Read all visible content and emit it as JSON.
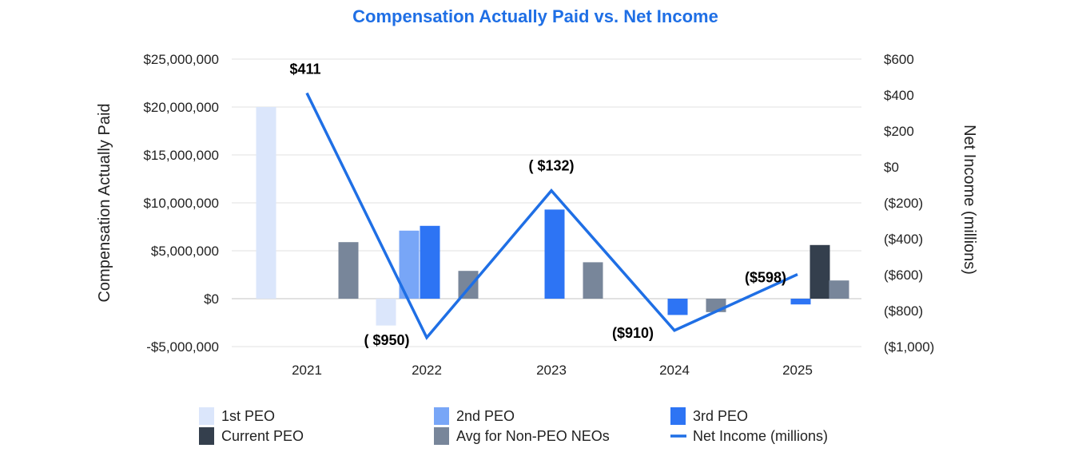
{
  "chart_data": {
    "type": "bar",
    "title": "Compensation Actually Paid vs. Net Income",
    "title_color": "#1f6fe5",
    "categories": [
      "2021",
      "2022",
      "2023",
      "2024",
      "2025"
    ],
    "ylabel": "Compensation Actually Paid",
    "y2label": "Net Income (millions)",
    "ylim": [
      -5000000,
      25000000
    ],
    "y2lim": [
      -1000,
      600
    ],
    "yticks": [
      25000000,
      20000000,
      15000000,
      10000000,
      5000000,
      0,
      -5000000
    ],
    "ytick_labels": [
      "$25,000,000",
      "$20,000,000",
      "$15,000,000",
      "$10,000,000",
      "$5,000,000",
      "$0",
      "-$5,000,000"
    ],
    "y2ticks": [
      600,
      400,
      200,
      0,
      -200,
      -400,
      -600,
      -800,
      -1000
    ],
    "y2tick_labels": [
      "$600",
      "$400",
      "$200",
      "$0",
      "($200)",
      "($400)",
      "($600)",
      "($800)",
      "($1,000)"
    ],
    "grid": true,
    "legend_position": "bottom",
    "series": [
      {
        "name": "1st PEO",
        "color": "#dbe6fb",
        "values": [
          20000000,
          -2800000,
          null,
          null,
          null
        ]
      },
      {
        "name": "2nd PEO",
        "color": "#78a6f7",
        "values": [
          null,
          7100000,
          null,
          null,
          null
        ]
      },
      {
        "name": "3rd PEO",
        "color": "#2d74f4",
        "values": [
          null,
          7600000,
          9300000,
          -1700000,
          -600000
        ]
      },
      {
        "name": "Current PEO",
        "color": "#343f4d",
        "values": [
          null,
          null,
          null,
          null,
          5600000
        ]
      },
      {
        "name": "Avg for Non-PEO NEOs",
        "color": "#78869a",
        "values": [
          5900000,
          2900000,
          3800000,
          -1400000,
          1900000
        ]
      }
    ],
    "line": {
      "name": "Net Income (millions)",
      "color": "#1f6fe5",
      "axis": "right",
      "values": [
        411,
        -950,
        -132,
        -910,
        -598
      ],
      "labels": [
        "$411",
        "( $950)",
        "( $132)",
        "($910)",
        "($598)"
      ]
    }
  }
}
